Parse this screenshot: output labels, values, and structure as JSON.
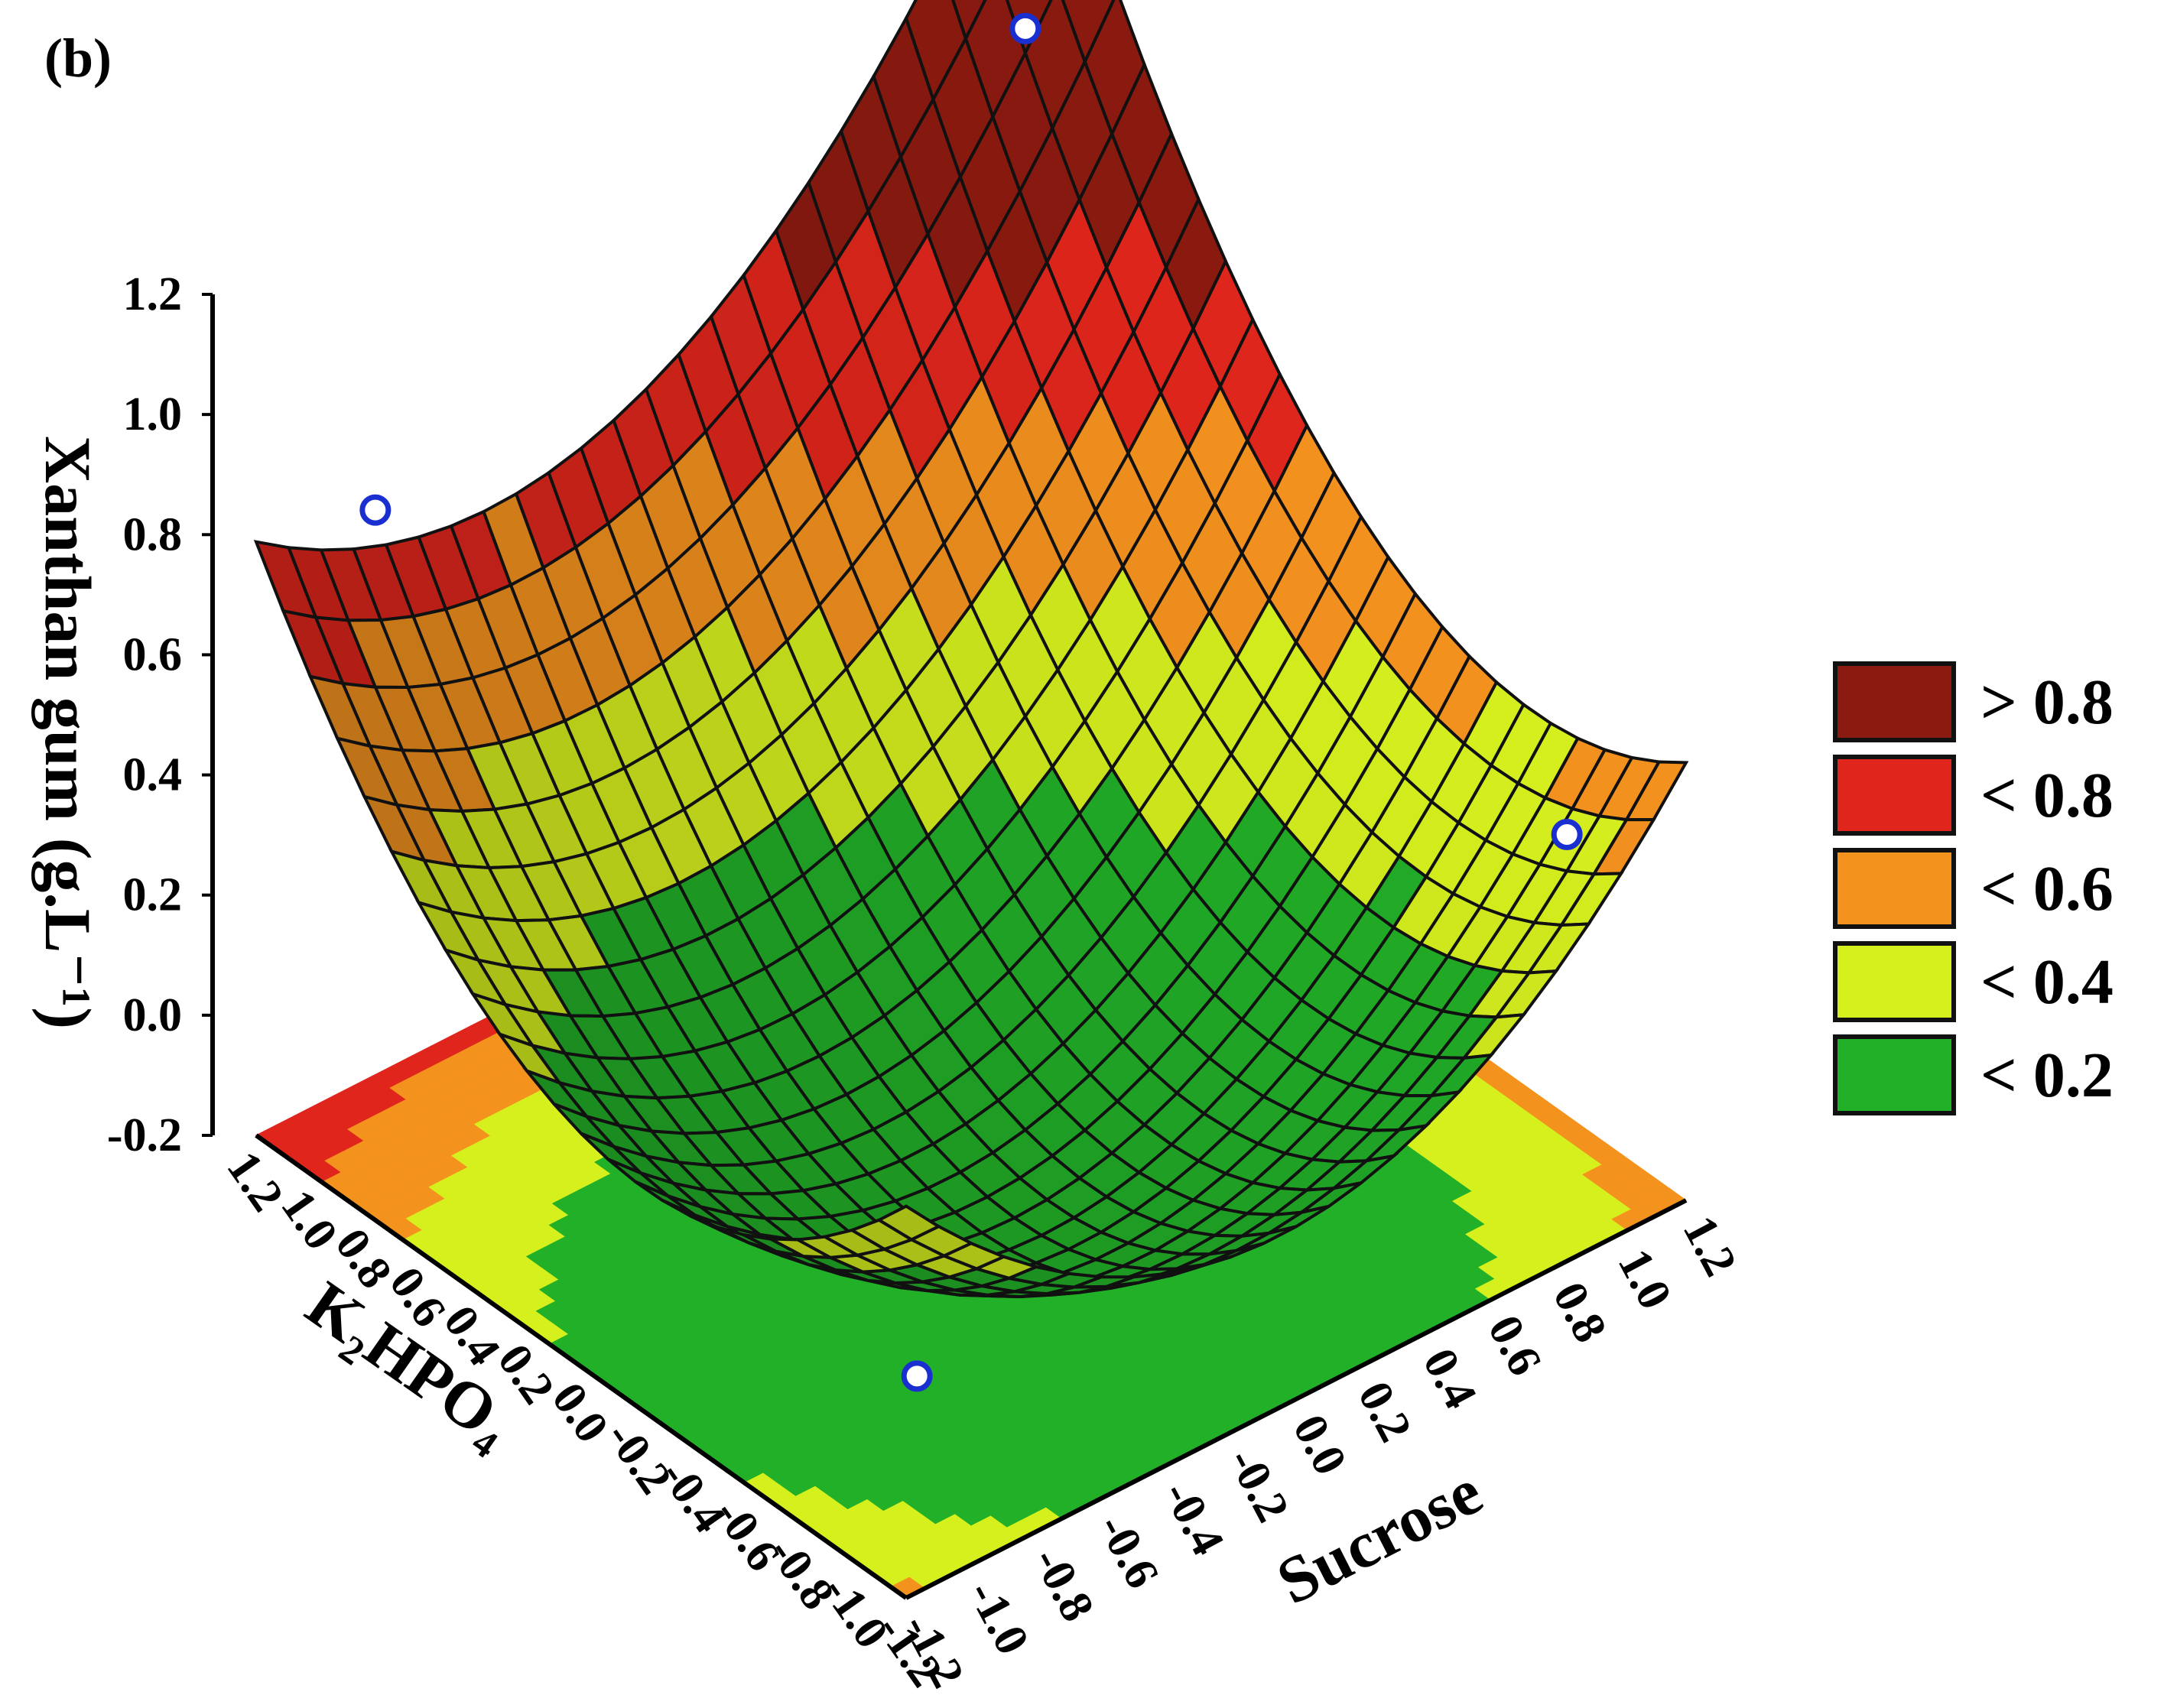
{
  "panel_label": "(b)",
  "chart_data": {
    "type": "surface3d",
    "title": "",
    "zlabel": "Xanthan gum (g.L⁻¹)",
    "xlabel": "K₂HPO₄",
    "ylabel": "Sucrose",
    "zlim": [
      -0.2,
      1.2
    ],
    "xlim": [
      -1.2,
      1.2
    ],
    "ylim": [
      -1.2,
      1.2
    ],
    "z_ticks": [
      "-0.2",
      "0.0",
      "0.2",
      "0.4",
      "0.6",
      "0.8",
      "1.0",
      "1.2"
    ],
    "x_ticks": [
      "1.2",
      "1.0",
      "0.8",
      "0.6",
      "0.4",
      "0.2",
      "0.0",
      "-0.2",
      "-0.4",
      "-0.6",
      "-0.8",
      "-1.0",
      "-1.2"
    ],
    "y_ticks": [
      "-1.2",
      "-1.0",
      "-0.8",
      "-0.6",
      "-0.4",
      "-0.2",
      "0.0",
      "0.2",
      "0.4",
      "0.6",
      "0.8",
      "1.0",
      "1.2"
    ],
    "legend": [
      {
        "label": "> 0.8",
        "color": "#8b1a10"
      },
      {
        "label": "< 0.8",
        "color": "#e0261c"
      },
      {
        "label": "< 0.6",
        "color": "#f4921e"
      },
      {
        "label": "< 0.4",
        "color": "#d6f01e"
      },
      {
        "label": "< 0.2",
        "color": "#22b028"
      }
    ],
    "surface": {
      "corner_values": {
        "k_hi_s_lo": 1.0,
        "k_hi_s_hi": 1.2,
        "k_lo_s_hi": 0.45,
        "k_lo_s_lo": 0.0
      },
      "minimum": {
        "k2hpo4": -0.4,
        "sucrose": -0.2,
        "xanthan": -0.1
      }
    },
    "design_points": [
      {
        "k2hpo4": 1.0,
        "sucrose": -1.0,
        "xanthan": 0.85
      },
      {
        "k2hpo4": 1.0,
        "sucrose": 1.0,
        "xanthan": 1.1
      },
      {
        "k2hpo4": -1.0,
        "sucrose": 1.0,
        "xanthan": 0.4
      },
      {
        "k2hpo4": -1.0,
        "sucrose": -1.0,
        "xanthan": 0.05
      }
    ],
    "grid": false,
    "legend_position": "right"
  }
}
